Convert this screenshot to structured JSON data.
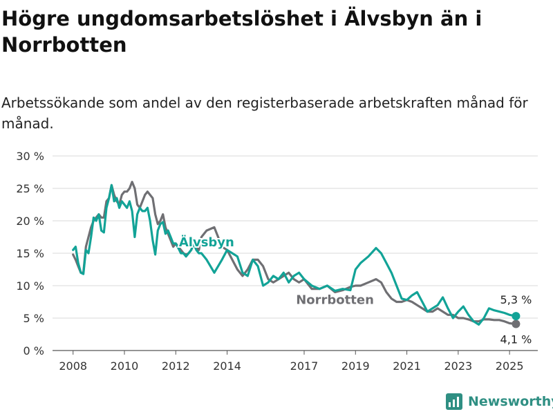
{
  "title": "Högre ungdomsarbetslöshet i Älvsbyn än i Norrbotten",
  "subtitle": "Arbetssökande som andel av den registerbaserade arbetskraften månad för månad.",
  "brand": "Newsworthy",
  "colors": {
    "alvsbyn": "#12a397",
    "norrbotten": "#6f6f73",
    "grid": "#d9d9d9",
    "brand": "#2f8f83"
  },
  "chart_data": {
    "type": "line",
    "ylim": [
      0,
      30
    ],
    "y_ticks": [
      0,
      5,
      10,
      15,
      20,
      25,
      30
    ],
    "y_tick_labels": [
      "0 %",
      "5 %",
      "10 %",
      "15 %",
      "20 %",
      "25 %",
      "30 %"
    ],
    "x_ticks": [
      2008,
      2010,
      2012,
      2014,
      2017,
      2019,
      2021,
      2023,
      2025
    ],
    "x_tick_labels": [
      "2008",
      "2010",
      "2012",
      "2014",
      "2017",
      "2019",
      "2021",
      "2023",
      "2025"
    ],
    "grid": true,
    "series": [
      {
        "name": "Älvsbyn",
        "color": "#12a397",
        "x": [
          2008.0,
          2008.1,
          2008.2,
          2008.3,
          2008.4,
          2008.5,
          2008.6,
          2008.7,
          2008.8,
          2008.9,
          2009.0,
          2009.1,
          2009.2,
          2009.3,
          2009.4,
          2009.5,
          2009.6,
          2009.7,
          2009.8,
          2009.9,
          2010.0,
          2010.1,
          2010.2,
          2010.3,
          2010.4,
          2010.5,
          2010.6,
          2010.7,
          2010.8,
          2010.9,
          2011.0,
          2011.1,
          2011.2,
          2011.3,
          2011.4,
          2011.5,
          2011.6,
          2011.7,
          2011.8,
          2011.9,
          2012.0,
          2012.1,
          2012.2,
          2012.3,
          2012.4,
          2012.5,
          2012.6,
          2012.7,
          2012.8,
          2012.9,
          2013.0,
          2013.2,
          2013.5,
          2013.8,
          2014.0,
          2014.2,
          2014.4,
          2014.6,
          2014.8,
          2015.0,
          2015.2,
          2015.4,
          2015.6,
          2015.8,
          2016.0,
          2016.2,
          2016.4,
          2016.6,
          2016.8,
          2017.0,
          2017.3,
          2017.6,
          2017.9,
          2018.2,
          2018.5,
          2018.8,
          2019.0,
          2019.2,
          2019.5,
          2019.8,
          2020.0,
          2020.2,
          2020.4,
          2020.6,
          2020.8,
          2021.0,
          2021.2,
          2021.4,
          2021.6,
          2021.8,
          2022.0,
          2022.2,
          2022.4,
          2022.6,
          2022.8,
          2023.0,
          2023.2,
          2023.4,
          2023.6,
          2023.8,
          2024.0,
          2024.2,
          2024.4,
          2024.6,
          2024.8,
          2025.0,
          2025.25
        ],
        "values": [
          15.5,
          16.0,
          13.5,
          12.0,
          11.8,
          15.5,
          15.0,
          17.5,
          20.5,
          20.0,
          21.0,
          18.5,
          18.2,
          22.0,
          23.5,
          25.5,
          23.0,
          23.5,
          22.0,
          23.0,
          22.5,
          22.0,
          23.0,
          21.5,
          17.5,
          21.0,
          22.0,
          21.5,
          21.5,
          22.0,
          20.0,
          17.0,
          14.8,
          18.5,
          19.5,
          19.8,
          18.0,
          18.5,
          17.5,
          16.5,
          16.5,
          15.8,
          15.0,
          15.0,
          14.5,
          15.0,
          15.5,
          16.5,
          15.5,
          15.0,
          15.0,
          14.0,
          12.0,
          14.0,
          15.5,
          15.0,
          14.5,
          12.0,
          11.5,
          14.0,
          13.0,
          10.0,
          10.5,
          11.5,
          11.0,
          12.0,
          10.5,
          11.5,
          12.0,
          11.0,
          10.0,
          9.5,
          10.0,
          9.2,
          9.5,
          9.3,
          12.5,
          13.5,
          14.5,
          15.8,
          15.0,
          13.5,
          12.0,
          10.0,
          8.0,
          7.8,
          8.5,
          9.0,
          7.5,
          6.0,
          6.5,
          7.0,
          8.2,
          6.5,
          5.0,
          6.0,
          6.8,
          5.5,
          4.5,
          4.0,
          5.0,
          6.5,
          6.2,
          6.0,
          5.8,
          5.5,
          5.3
        ]
      },
      {
        "name": "Norrbotten",
        "color": "#6f6f73",
        "x": [
          2008.0,
          2008.1,
          2008.2,
          2008.3,
          2008.4,
          2008.5,
          2008.6,
          2008.7,
          2008.8,
          2008.9,
          2009.0,
          2009.1,
          2009.2,
          2009.3,
          2009.4,
          2009.5,
          2009.6,
          2009.7,
          2009.8,
          2009.9,
          2010.0,
          2010.1,
          2010.2,
          2010.3,
          2010.4,
          2010.5,
          2010.6,
          2010.7,
          2010.8,
          2010.9,
          2011.0,
          2011.1,
          2011.2,
          2011.3,
          2011.4,
          2011.5,
          2011.6,
          2011.7,
          2011.8,
          2011.9,
          2012.0,
          2012.1,
          2012.2,
          2012.3,
          2012.4,
          2012.5,
          2012.6,
          2012.7,
          2012.8,
          2012.9,
          2013.0,
          2013.2,
          2013.5,
          2013.8,
          2014.0,
          2014.2,
          2014.4,
          2014.6,
          2014.8,
          2015.0,
          2015.2,
          2015.4,
          2015.6,
          2015.8,
          2016.0,
          2016.2,
          2016.4,
          2016.6,
          2016.8,
          2017.0,
          2017.3,
          2017.6,
          2017.9,
          2018.2,
          2018.5,
          2018.8,
          2019.0,
          2019.2,
          2019.5,
          2019.8,
          2020.0,
          2020.2,
          2020.4,
          2020.6,
          2020.8,
          2021.0,
          2021.2,
          2021.4,
          2021.6,
          2021.8,
          2022.0,
          2022.2,
          2022.4,
          2022.6,
          2022.8,
          2023.0,
          2023.2,
          2023.4,
          2023.6,
          2023.8,
          2024.0,
          2024.2,
          2024.4,
          2024.6,
          2024.8,
          2025.0,
          2025.25
        ],
        "values": [
          14.8,
          14.0,
          13.0,
          12.0,
          12.0,
          16.0,
          17.5,
          19.0,
          20.0,
          20.5,
          21.0,
          20.5,
          20.5,
          23.0,
          23.5,
          25.5,
          24.0,
          23.0,
          22.5,
          24.0,
          24.5,
          24.5,
          25.0,
          26.0,
          25.0,
          22.5,
          22.0,
          23.0,
          24.0,
          24.5,
          24.0,
          23.5,
          21.0,
          19.5,
          20.0,
          21.0,
          19.0,
          18.0,
          17.0,
          16.0,
          16.5,
          16.0,
          15.5,
          15.0,
          14.8,
          15.0,
          15.5,
          16.5,
          16.0,
          15.5,
          17.5,
          18.5,
          19.0,
          16.0,
          15.5,
          14.0,
          12.5,
          11.5,
          12.5,
          14.0,
          14.0,
          13.0,
          11.0,
          10.5,
          11.0,
          11.5,
          12.0,
          11.0,
          10.5,
          11.0,
          9.5,
          9.5,
          10.0,
          9.0,
          9.3,
          9.8,
          10.0,
          10.0,
          10.5,
          11.0,
          10.5,
          9.0,
          8.0,
          7.5,
          7.5,
          7.8,
          7.5,
          7.0,
          6.5,
          6.0,
          6.0,
          6.5,
          6.0,
          5.5,
          5.5,
          5.0,
          5.0,
          4.8,
          4.5,
          4.5,
          4.8,
          4.8,
          4.7,
          4.7,
          4.5,
          4.2,
          4.1
        ]
      }
    ],
    "annotations": [
      {
        "text": "Älvsbyn",
        "series": "Älvsbyn",
        "x": 2013.2,
        "y": 16.7
      },
      {
        "text": "Norrbotten",
        "series": "Norrbotten",
        "x": 2018.2,
        "y": 7.8
      },
      {
        "text": "5,3 %",
        "series": "Älvsbyn",
        "x": 2025.25,
        "y": 5.3
      },
      {
        "text": "4,1 %",
        "series": "Norrbotten",
        "x": 2025.25,
        "y": 4.1
      }
    ]
  }
}
